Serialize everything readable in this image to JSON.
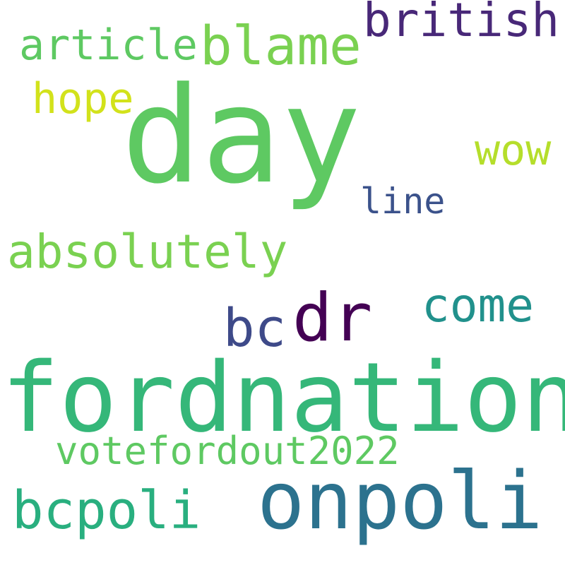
{
  "words": {
    "day": {
      "text": "day",
      "color": "#5ec962"
    },
    "fordnation": {
      "text": "fordnation",
      "color": "#35b779"
    },
    "onpoli": {
      "text": "onpoli",
      "color": "#2c728e"
    },
    "dr": {
      "text": "dr",
      "color": "#440154"
    },
    "blame": {
      "text": "blame",
      "color": "#7ad151"
    },
    "british": {
      "text": "british",
      "color": "#482878"
    },
    "absolutely": {
      "text": "absolutely",
      "color": "#7ad151"
    },
    "bcpoli": {
      "text": "bcpoli",
      "color": "#29af7f"
    },
    "bc": {
      "text": "bc",
      "color": "#3e4a89"
    },
    "come": {
      "text": "come",
      "color": "#21918c"
    },
    "hope": {
      "text": "hope",
      "color": "#d2e21b"
    },
    "article": {
      "text": "article",
      "color": "#5ec962"
    },
    "wow": {
      "text": "wow",
      "color": "#b5de2b"
    },
    "votefordout2022": {
      "text": "votefordout2022",
      "color": "#5ec962"
    },
    "line": {
      "text": "line",
      "color": "#3b528b"
    }
  }
}
